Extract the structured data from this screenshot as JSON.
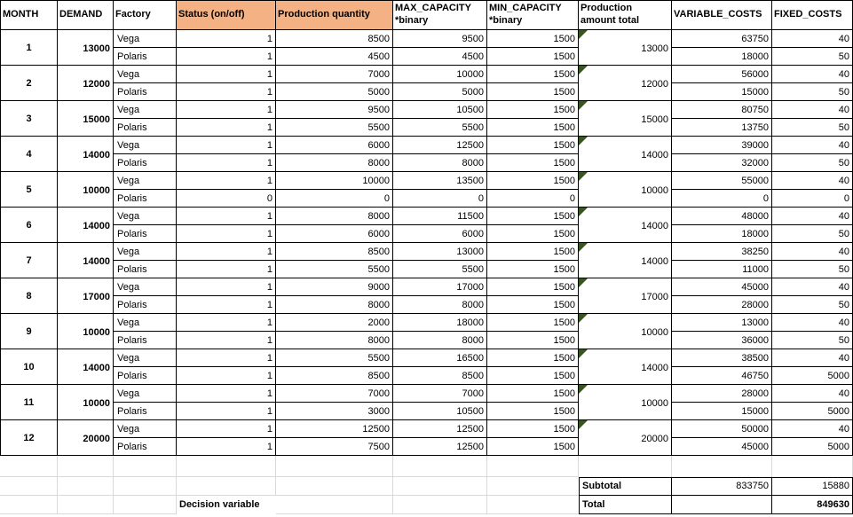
{
  "colors": {
    "demand_fill": "#FF0000",
    "decision_fill": "#F4B183",
    "total_fill": "#00B050",
    "total_marker": "#375623",
    "subtotal_fill": "#00B0F0",
    "grand_total_fill": "#8EAADB",
    "gridline": "#D9D9D9"
  },
  "table": {
    "headers": [
      "MONTH",
      "DEMAND",
      "Factory",
      "Status (on/off)",
      "Production quantity",
      "MAX_CAPACITY\n*binary",
      "MIN_CAPACITY\n*binary",
      "Production\namount total",
      "VARIABLE_COSTS",
      "FIXED_COSTS"
    ],
    "months": [
      {
        "month": "1",
        "demand": "13000",
        "total": "13000",
        "rows": [
          {
            "factory": "Vega",
            "status": "1",
            "qty": "8500",
            "max": "9500",
            "min": "1500",
            "variable": "63750",
            "fixed": "40"
          },
          {
            "factory": "Polaris",
            "status": "1",
            "qty": "4500",
            "max": "4500",
            "min": "1500",
            "variable": "18000",
            "fixed": "50"
          }
        ]
      },
      {
        "month": "2",
        "demand": "12000",
        "total": "12000",
        "rows": [
          {
            "factory": "Vega",
            "status": "1",
            "qty": "7000",
            "max": "10000",
            "min": "1500",
            "variable": "56000",
            "fixed": "40"
          },
          {
            "factory": "Polaris",
            "status": "1",
            "qty": "5000",
            "max": "5000",
            "min": "1500",
            "variable": "15000",
            "fixed": "50"
          }
        ]
      },
      {
        "month": "3",
        "demand": "15000",
        "total": "15000",
        "rows": [
          {
            "factory": "Vega",
            "status": "1",
            "qty": "9500",
            "max": "10500",
            "min": "1500",
            "variable": "80750",
            "fixed": "40"
          },
          {
            "factory": "Polaris",
            "status": "1",
            "qty": "5500",
            "max": "5500",
            "min": "1500",
            "variable": "13750",
            "fixed": "50"
          }
        ]
      },
      {
        "month": "4",
        "demand": "14000",
        "total": "14000",
        "rows": [
          {
            "factory": "Vega",
            "status": "1",
            "qty": "6000",
            "max": "12500",
            "min": "1500",
            "variable": "39000",
            "fixed": "40"
          },
          {
            "factory": "Polaris",
            "status": "1",
            "qty": "8000",
            "max": "8000",
            "min": "1500",
            "variable": "32000",
            "fixed": "50"
          }
        ]
      },
      {
        "month": "5",
        "demand": "10000",
        "total": "10000",
        "rows": [
          {
            "factory": "Vega",
            "status": "1",
            "qty": "10000",
            "max": "13500",
            "min": "1500",
            "variable": "55000",
            "fixed": "40"
          },
          {
            "factory": "Polaris",
            "status": "0",
            "qty": "0",
            "max": "0",
            "min": "0",
            "variable": "0",
            "fixed": "0"
          }
        ]
      },
      {
        "month": "6",
        "demand": "14000",
        "total": "14000",
        "rows": [
          {
            "factory": "Vega",
            "status": "1",
            "qty": "8000",
            "max": "11500",
            "min": "1500",
            "variable": "48000",
            "fixed": "40"
          },
          {
            "factory": "Polaris",
            "status": "1",
            "qty": "6000",
            "max": "6000",
            "min": "1500",
            "variable": "18000",
            "fixed": "50"
          }
        ]
      },
      {
        "month": "7",
        "demand": "14000",
        "total": "14000",
        "rows": [
          {
            "factory": "Vega",
            "status": "1",
            "qty": "8500",
            "max": "13000",
            "min": "1500",
            "variable": "38250",
            "fixed": "40"
          },
          {
            "factory": "Polaris",
            "status": "1",
            "qty": "5500",
            "max": "5500",
            "min": "1500",
            "variable": "11000",
            "fixed": "50"
          }
        ]
      },
      {
        "month": "8",
        "demand": "17000",
        "total": "17000",
        "rows": [
          {
            "factory": "Vega",
            "status": "1",
            "qty": "9000",
            "max": "17000",
            "min": "1500",
            "variable": "45000",
            "fixed": "40"
          },
          {
            "factory": "Polaris",
            "status": "1",
            "qty": "8000",
            "max": "8000",
            "min": "1500",
            "variable": "28000",
            "fixed": "50"
          }
        ]
      },
      {
        "month": "9",
        "demand": "10000",
        "total": "10000",
        "rows": [
          {
            "factory": "Vega",
            "status": "1",
            "qty": "2000",
            "max": "18000",
            "min": "1500",
            "variable": "13000",
            "fixed": "40"
          },
          {
            "factory": "Polaris",
            "status": "1",
            "qty": "8000",
            "max": "8000",
            "min": "1500",
            "variable": "36000",
            "fixed": "50"
          }
        ]
      },
      {
        "month": "10",
        "demand": "14000",
        "total": "14000",
        "rows": [
          {
            "factory": "Vega",
            "status": "1",
            "qty": "5500",
            "max": "16500",
            "min": "1500",
            "variable": "38500",
            "fixed": "40"
          },
          {
            "factory": "Polaris",
            "status": "1",
            "qty": "8500",
            "max": "8500",
            "min": "1500",
            "variable": "46750",
            "fixed": "5000"
          }
        ]
      },
      {
        "month": "11",
        "demand": "10000",
        "total": "10000",
        "rows": [
          {
            "factory": "Vega",
            "status": "1",
            "qty": "7000",
            "max": "7000",
            "min": "1500",
            "variable": "28000",
            "fixed": "40"
          },
          {
            "factory": "Polaris",
            "status": "1",
            "qty": "3000",
            "max": "10500",
            "min": "1500",
            "variable": "15000",
            "fixed": "5000"
          }
        ]
      },
      {
        "month": "12",
        "demand": "20000",
        "total": "20000",
        "rows": [
          {
            "factory": "Vega",
            "status": "1",
            "qty": "12500",
            "max": "12500",
            "min": "1500",
            "variable": "50000",
            "fixed": "40"
          },
          {
            "factory": "Polaris",
            "status": "1",
            "qty": "7500",
            "max": "12500",
            "min": "1500",
            "variable": "45000",
            "fixed": "5000"
          }
        ]
      }
    ]
  },
  "footer": {
    "subtotal_label": "Subtotal",
    "subtotal_variable": "833750",
    "subtotal_fixed": "15880",
    "total_label": "Total",
    "total_value": "849630",
    "decision_variable_label": "Decision variable"
  }
}
